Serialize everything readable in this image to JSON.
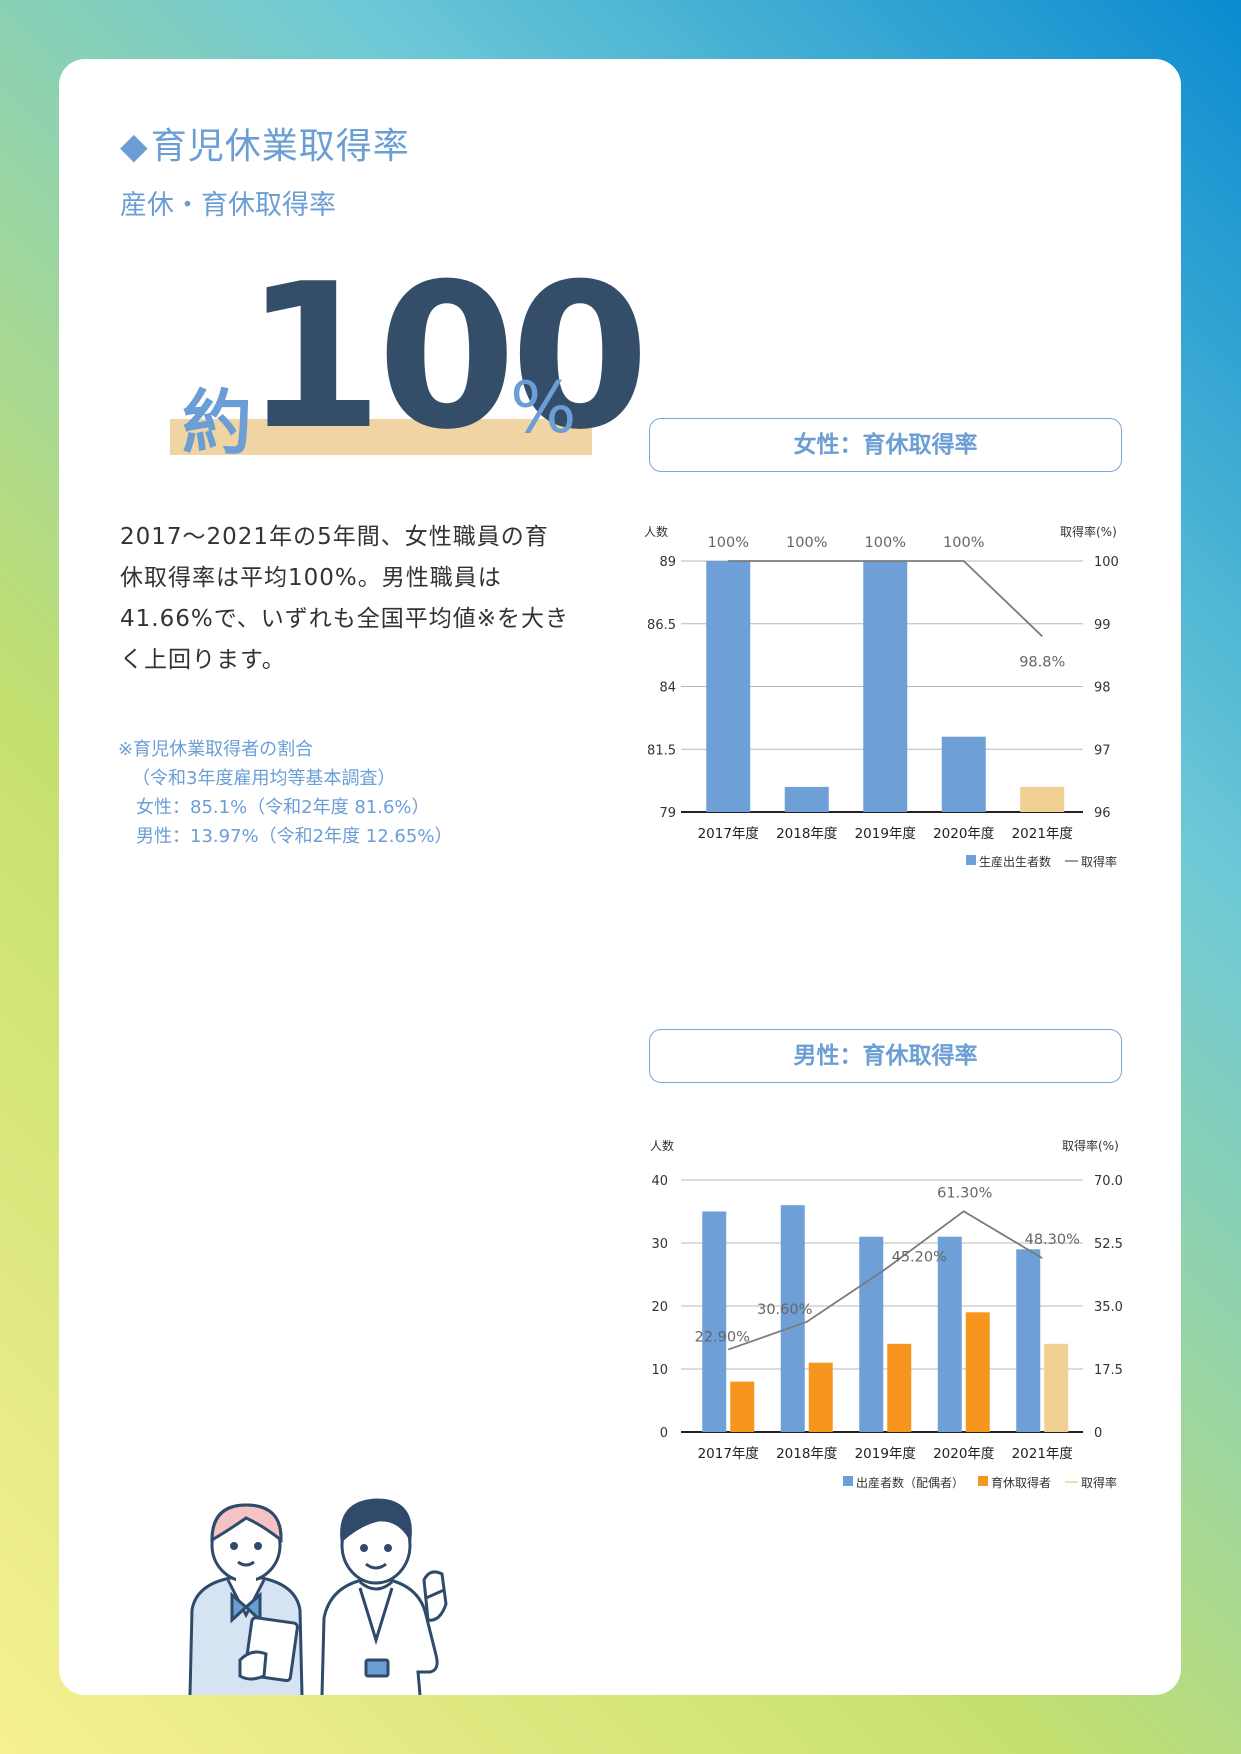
{
  "page": {
    "heading_symbol": "◆",
    "heading": "育児休業取得率",
    "subheading": "産休・育休取得率",
    "big_prefix": "約",
    "big_number": "100",
    "big_unit": "%",
    "body_lines": [
      "2017～2021年の5年間、女性職員の育",
      "休取得率は平均100%。男性職員は",
      "41.66%で、いずれも全国平均値※を大き",
      "く上回ります。"
    ],
    "note_lines": [
      "※育児休業取得者の割合",
      "（令和3年度雇用均等基本調査）",
      "女性：85.1%（令和2年度 81.6%）",
      "男性：13.97%（令和2年度 12.65%）"
    ]
  },
  "colors": {
    "accent_blue": "#6a9ed5",
    "bar_blue": "#6e9fd6",
    "bar_orange": "#f7961e",
    "bar_light": "#f0cf93",
    "line_gray": "#7b7b7b",
    "navy": "#344e6a"
  },
  "chart_data": [
    {
      "type": "bar",
      "title": "女性：育休取得率",
      "left_axis_label": "人数",
      "right_axis_label": "取得率(%)",
      "categories": [
        "2017年度",
        "2018年度",
        "2019年度",
        "2020年度",
        "2021年度"
      ],
      "y_left_ticks": [
        "89",
        "86.5",
        "84",
        "81.5",
        "79"
      ],
      "y_right_ticks": [
        "100",
        "99",
        "98",
        "97",
        "96"
      ],
      "ylim_left": [
        79,
        89
      ],
      "ylim_right": [
        96,
        100
      ],
      "series": [
        {
          "name": "生産出生者数",
          "type": "bar",
          "axis": "left",
          "values": [
            89,
            80,
            89,
            82,
            80
          ]
        },
        {
          "name": "取得率",
          "type": "line",
          "axis": "right",
          "values": [
            100,
            100,
            100,
            100,
            98.8
          ],
          "labels": [
            "100%",
            "100%",
            "100%",
            "100%",
            "98.8%"
          ]
        }
      ],
      "legend": [
        "生産出生者数",
        "取得率"
      ],
      "legend_position": "bottom-right"
    },
    {
      "type": "bar",
      "title": "男性：育休取得率",
      "left_axis_label": "人数",
      "right_axis_label": "取得率(%)",
      "categories": [
        "2017年度",
        "2018年度",
        "2019年度",
        "2020年度",
        "2021年度"
      ],
      "y_left_ticks": [
        "40",
        "30",
        "20",
        "10",
        "0"
      ],
      "y_right_ticks": [
        "70.0",
        "52.5",
        "35.0",
        "17.5",
        "0"
      ],
      "ylim_left": [
        0,
        40
      ],
      "ylim_right": [
        0,
        70
      ],
      "series": [
        {
          "name": "出産者数（配偶者）",
          "type": "bar",
          "axis": "left",
          "values": [
            35,
            36,
            31,
            31,
            29
          ]
        },
        {
          "name": "育休取得者",
          "type": "bar",
          "axis": "left",
          "values": [
            8,
            11,
            14,
            19,
            14
          ]
        },
        {
          "name": "取得率",
          "type": "line",
          "axis": "right",
          "values": [
            22.9,
            30.6,
            45.2,
            61.3,
            48.3
          ],
          "labels": [
            "22.90%",
            "30.60%",
            "45.20%",
            "61.30%",
            "48.30%"
          ]
        }
      ],
      "legend": [
        "出産者数（配偶者）",
        "育休取得者",
        "取得率"
      ],
      "legend_position": "bottom-right"
    }
  ]
}
